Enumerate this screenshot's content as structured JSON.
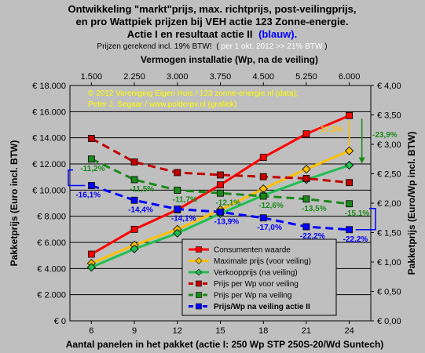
{
  "chart_data": {
    "type": "line",
    "title_lines": [
      "Ontwikkeling \"markt\"prijs, max. richtprijs, post-veilingprijs,",
      "en pro Wattpiek prijzen bij VEH actie 123 Zonne-energie.",
      "Actie I en resultaat actie II"
    ],
    "title_highlight": "(blauw).",
    "subtitle_prefix": "Prijzen gerekend incl. 19% BTW!",
    "subtitle_highlight": "per 1 okt. 2012 >> 21% BTW",
    "subtitle_suffix": ")",
    "top_axis_title": "Vermogen installatie (Wp, na de veiling)",
    "top_axis_ticks": [
      "1.500",
      "2.250",
      "3.000",
      "3.750",
      "4.500",
      "5.250",
      "6.000"
    ],
    "xlabel": "Aantal panelen in het pakket (actie I: 250 Wp STP 250S-20/Wd Suntech)",
    "x": [
      6,
      9,
      12,
      15,
      18,
      21,
      24
    ],
    "xlim": [
      4.5,
      25.5
    ],
    "ylabel_left": "Pakketprijs (Euro incl. BTW)",
    "ylim_left": [
      0,
      18000
    ],
    "y_ticks_left": [
      "€ 0",
      "€ 2.000",
      "€ 4.000",
      "€ 6.000",
      "€ 8.000",
      "€ 10.000",
      "€ 12.000",
      "€ 14.000",
      "€ 16.000",
      "€ 18.000"
    ],
    "ylabel_right": "Pakketprijs (Euro/Wp incl. BTW)",
    "ylim_right": [
      0,
      4
    ],
    "y_ticks_right": [
      "€ 0,00",
      "€ 0,50",
      "€ 1,00",
      "€ 1,50",
      "€ 2,00",
      "€ 2,50",
      "€ 3,00",
      "€ 3,50",
      "€ 4,00"
    ],
    "grid": true,
    "legend_position": "bottom-center",
    "credits": [
      "© 2012 Vereniging Eigen Huis / 123 zonne-energie.nl (data);",
      "Peter J. Segaar / www.polderpv.nl (grafiek)"
    ],
    "series": [
      {
        "name": "Consumenten waarde",
        "axis": "left",
        "color": "#ff0000",
        "dashed": false,
        "marker": "square",
        "values": [
          5100,
          7000,
          8500,
          10400,
          12500,
          14300,
          15700
        ]
      },
      {
        "name": "Maximale prijs (voor veiling)",
        "axis": "left",
        "color": "#ffc000",
        "dashed": false,
        "marker": "diamond",
        "values": [
          4400,
          5800,
          7000,
          8500,
          10100,
          11600,
          13000
        ]
      },
      {
        "name": "Verkoopprijs (na veiling)",
        "axis": "left",
        "color": "#1fbf4f",
        "dashed": false,
        "marker": "diamond",
        "values": [
          4100,
          5500,
          6700,
          8200,
          9600,
          10800,
          11900
        ]
      },
      {
        "name": "Prijs per Wp voor veiling",
        "axis": "right",
        "color": "#c00000",
        "dashed": true,
        "marker": "square",
        "values": [
          3.1,
          2.7,
          2.52,
          2.48,
          2.45,
          2.42,
          2.35
        ]
      },
      {
        "name": "Prijs per Wp na veiling",
        "axis": "right",
        "color": "#1a8a1a",
        "dashed": true,
        "marker": "square",
        "values": [
          2.75,
          2.4,
          2.22,
          2.17,
          2.12,
          2.07,
          1.99
        ]
      },
      {
        "name": "Prijs/Wp na veiling actie II",
        "axis": "right",
        "color": "#0000ff",
        "dashed": true,
        "marker": "square",
        "values": [
          2.3,
          2.05,
          1.9,
          1.85,
          1.75,
          1.6,
          1.55
        ]
      }
    ],
    "annotations": {
      "green_pct": [
        "-11,2%",
        "-11,5%",
        "-11,7%",
        "-12,1%",
        "-12,6%",
        "-13,5%",
        "-15,1%"
      ],
      "blue_pct": [
        "-16,1%",
        "-14,4%",
        "-14,1%",
        "-13,9%",
        "-17,0%",
        "-22,2%",
        "-22,2%"
      ],
      "orange_pct": "-17,3%",
      "right_pct": "-23,9%"
    }
  }
}
